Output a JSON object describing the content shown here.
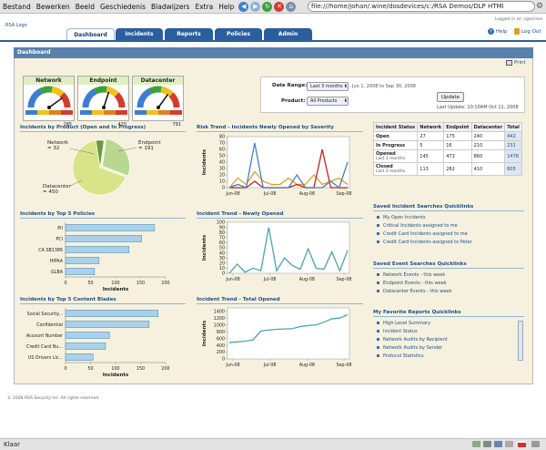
{
  "browser": {
    "menus": [
      "Bestand",
      "Bewerken",
      "Beeld",
      "Geschiedenis",
      "Bladwijzers",
      "Extra",
      "Help"
    ],
    "url": "file:///home/johan/.wine/dosdevices/c:/RSA Demos/DLP HTMl",
    "status": "Klaar"
  },
  "app": {
    "logo_text": "RSA Logo",
    "logged_in": "Logged in as: cgarrison",
    "help": "Help",
    "logout": "Log Out",
    "tabs": [
      "Dashboard",
      "Incidents",
      "Reports",
      "Policies",
      "Admin"
    ],
    "panel_title": "Dashboard",
    "print": "Print",
    "footer": "© 2008 RSA Security Inc. All rights reserved."
  },
  "gauges": [
    {
      "label": "Network",
      "value": "185",
      "level": 0.8
    },
    {
      "label": "Endpoint",
      "value": "420",
      "level": 0.6
    },
    {
      "label": "Datacenter",
      "value": "791",
      "level": 0.7
    }
  ],
  "filters": {
    "date_range_label": "Date Range:",
    "date_range_value": "Last 3 months",
    "date_range_text": "Jun 1, 2008 to Sep 30, 2008",
    "product_label": "Product:",
    "product_value": "All Products",
    "update_button": "Update",
    "last_update": "Last Update: 10:10AM Oct 11, 2008"
  },
  "sections": {
    "by_product": "Incidents by Product (Open and In Progress)",
    "risk_trend": "Risk Trend - Incidents Newly Opened by Severity",
    "top_policies": "Incidents by Top 5 Policies",
    "trend_new": "Incident Trend - Newly Opened",
    "top_blades": "Incidents by Top 5 Content Blades",
    "trend_total": "Incident Trend - Total Opened",
    "incident_quicklinks": "Saved Incident Searches Quicklinks",
    "event_quicklinks": "Saved Event Searches Quicklinks",
    "report_quicklinks": "My Favorite Reports Quicklinks"
  },
  "chart_data": [
    {
      "type": "pie",
      "title": "Incidents by Product (Open and In Progress)",
      "categories": [
        "Network",
        "Endpoint",
        "Datacenter"
      ],
      "values": [
        32,
        191,
        450
      ],
      "labels": [
        "Network\n= 32",
        "Endpoint\n= 191",
        "Datacenter\n= 450"
      ]
    },
    {
      "type": "line",
      "title": "Risk Trend - Incidents Newly Opened by Severity",
      "ylabel": "Incidents",
      "x_ticks": [
        "Jun-08",
        "Jul-08",
        "Aug-08",
        "Sep-08"
      ],
      "y_ticks": [
        0,
        10,
        20,
        30,
        40,
        50,
        60,
        70,
        80
      ],
      "ylim": [
        0,
        80
      ],
      "series": [
        {
          "color": "#e0a020",
          "values": [
            0,
            15,
            5,
            25,
            10,
            5,
            5,
            15,
            5,
            5,
            20,
            5,
            10,
            15,
            5
          ]
        },
        {
          "color": "#c0241f",
          "values": [
            0,
            0,
            0,
            10,
            0,
            0,
            0,
            0,
            5,
            0,
            0,
            60,
            0,
            0,
            0
          ]
        },
        {
          "color": "#4a7fc1",
          "values": [
            0,
            5,
            0,
            70,
            0,
            0,
            0,
            0,
            20,
            0,
            0,
            0,
            10,
            0,
            40
          ]
        }
      ]
    },
    {
      "type": "bar",
      "title": "Incidents by Top 5 Policies",
      "xlabel": "Incidents",
      "categories": [
        "PII",
        "PCI",
        "CA SB1386",
        "HIPAA",
        "GLBA"
      ],
      "values": [
        178,
        152,
        127,
        67,
        58
      ],
      "x_ticks": [
        0,
        50,
        100,
        150,
        200
      ],
      "xlim": [
        0,
        200
      ]
    },
    {
      "type": "line",
      "title": "Incident Trend - Newly Opened",
      "ylabel": "Incidents",
      "x_ticks": [
        "Jun-08",
        "Jul-08",
        "Aug-08",
        "Sep-08"
      ],
      "y_ticks": [
        0,
        10,
        20,
        30,
        40,
        50,
        60,
        70,
        80,
        90,
        100
      ],
      "ylim": [
        0,
        100
      ],
      "series": [
        {
          "color": "#4aa3b6",
          "values": [
            0,
            18,
            2,
            10,
            5,
            90,
            5,
            30,
            15,
            8,
            48,
            10,
            8,
            42,
            5,
            45
          ]
        }
      ]
    },
    {
      "type": "bar",
      "title": "Incidents by Top 5 Content Blades",
      "xlabel": "Incidents",
      "categories": [
        "Social Security...",
        "Confidential",
        "Account Number",
        "Credit Card Nu...",
        "US Drivers Lic..."
      ],
      "values": [
        185,
        167,
        88,
        80,
        55
      ],
      "x_ticks": [
        0,
        50,
        100,
        150,
        200
      ],
      "xlim": [
        0,
        200
      ]
    },
    {
      "type": "line",
      "title": "Incident Trend - Total Opened",
      "ylabel": "Incidents",
      "x_ticks": [
        "Jun-08",
        "Jul-08",
        "Aug-08",
        "Sep-08"
      ],
      "y_ticks": [
        0,
        200,
        400,
        600,
        800,
        1000,
        1200,
        1400
      ],
      "ylim": [
        0,
        1500
      ],
      "series": [
        {
          "color": "#4aa3b6",
          "values": [
            480,
            500,
            520,
            560,
            820,
            850,
            870,
            880,
            890,
            950,
            980,
            1000,
            1080,
            1180,
            1200,
            1300
          ]
        }
      ]
    }
  ],
  "status_table": {
    "headers": [
      "Incident Status",
      "Network",
      "Endpoint",
      "Datacenter",
      "Total"
    ],
    "rows": [
      {
        "status": "Open",
        "sub": "",
        "network": "27",
        "endpoint": "175",
        "datacenter": "240",
        "total": "442"
      },
      {
        "status": "In Progress",
        "sub": "",
        "network": "5",
        "endpoint": "16",
        "datacenter": "210",
        "total": "231"
      },
      {
        "status": "Opened",
        "sub": "Last 3 months",
        "network": "145",
        "endpoint": "473",
        "datacenter": "860",
        "total": "1478"
      },
      {
        "status": "Closed",
        "sub": "Last 3 months",
        "network": "113",
        "endpoint": "282",
        "datacenter": "410",
        "total": "805"
      }
    ]
  },
  "incident_links": [
    "My Open Incidents",
    "Critical Incidents assigned to me",
    "Credit Card Incidents assigned to me",
    "Credit Card Incidents assigned to Peter"
  ],
  "event_links": [
    "Network Events - this week",
    "Endpoint Events - this week",
    "Datacenter Events - this week"
  ],
  "report_links": [
    "High Level Summary",
    "Incident Status",
    "Network Audits by Recipient",
    "Network Audits by Sender",
    "Protocol Statistics"
  ]
}
